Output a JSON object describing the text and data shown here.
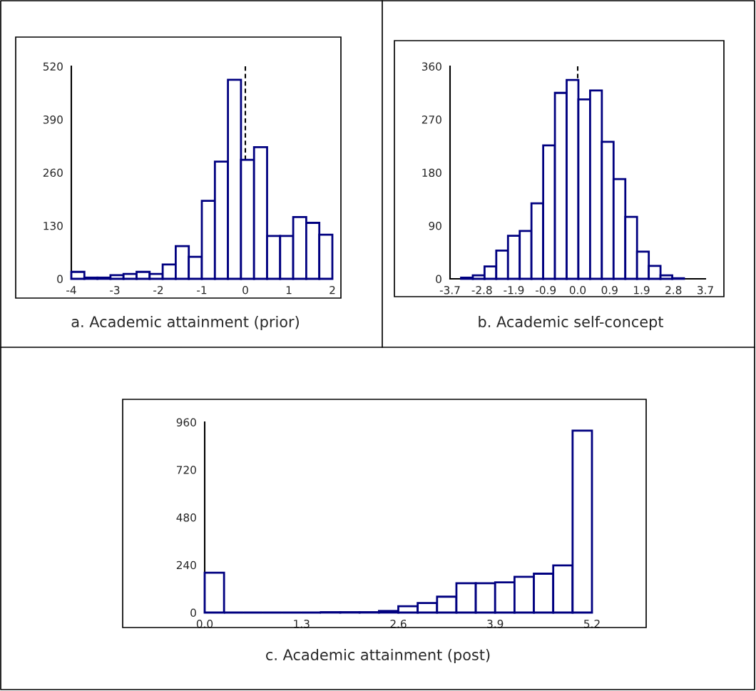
{
  "chart_data": [
    {
      "type": "histogram",
      "title": "a. Academic attainment (prior)",
      "color": "#000080",
      "bins": [
        -4,
        -3.7,
        -3.4,
        -3.1,
        -2.8,
        -2.5,
        -2.2,
        -1.9,
        -1.6,
        -1.3,
        -1,
        -0.7,
        -0.4,
        -0.1,
        0.2,
        0.5,
        0.8,
        1.1,
        1.4,
        1.7,
        2
      ],
      "values": [
        17,
        3,
        3,
        9,
        12,
        17,
        12,
        35,
        80,
        54,
        191,
        287,
        487,
        291,
        322,
        105,
        105,
        151,
        137,
        108
      ],
      "xlim": [
        -4,
        2
      ],
      "xticks": [
        -4,
        -3,
        -2,
        -1,
        0,
        1,
        2
      ],
      "ylim": [
        0,
        520
      ],
      "yticks": [
        0,
        130,
        260,
        390,
        520
      ],
      "ref_lines": [
        {
          "axis": "x",
          "value": 0,
          "color": "#000000",
          "line_style": "dashed"
        }
      ]
    },
    {
      "type": "histogram",
      "title": "b. Academic self-concept",
      "color": "#000080",
      "bins": [
        -3.38,
        -3.04,
        -2.7,
        -2.36,
        -2.02,
        -1.68,
        -1.34,
        -1,
        -0.66,
        -0.32,
        0.02,
        0.36,
        0.7,
        1.04,
        1.38,
        1.72,
        2.06,
        2.4,
        2.74,
        3.08
      ],
      "values": [
        2,
        6,
        21,
        48,
        73,
        81,
        128,
        226,
        315,
        337,
        304,
        319,
        232,
        169,
        105,
        46,
        22,
        6,
        1
      ],
      "xlim": [
        -3.7,
        3.7
      ],
      "xticks": [
        {
          "value": -3.7,
          "label": "-3.7"
        },
        {
          "value": -2.775,
          "label": "-2.8"
        },
        {
          "value": -1.85,
          "label": "-1.9"
        },
        {
          "value": -0.925,
          "label": "-0.9"
        },
        {
          "value": 0,
          "label": "0.0"
        },
        {
          "value": 0.925,
          "label": "0.9"
        },
        {
          "value": 1.85,
          "label": "1.9"
        },
        {
          "value": 2.775,
          "label": "2.8"
        },
        {
          "value": 3.7,
          "label": "3.7"
        }
      ],
      "ylim": [
        0,
        360
      ],
      "yticks": [
        0,
        90,
        180,
        270,
        360
      ],
      "ref_lines": [
        {
          "axis": "x",
          "value": 0,
          "color": "#000000",
          "line_style": "dashed"
        }
      ]
    },
    {
      "type": "histogram",
      "title": "c. Academic attainment (post)",
      "color": "#000080",
      "bins": [
        0,
        0.26,
        0.52,
        0.78,
        1.04,
        1.3,
        1.56,
        1.82,
        2.08,
        2.34,
        2.6,
        2.86,
        3.12,
        3.38,
        3.64,
        3.9,
        4.16,
        4.42,
        4.68,
        4.94,
        5.2
      ],
      "values": [
        201,
        0,
        0,
        0,
        0,
        0,
        2,
        2,
        2,
        8,
        32,
        48,
        80,
        148,
        148,
        152,
        180,
        196,
        238,
        917
      ],
      "xlim": [
        0,
        5.2
      ],
      "xticks": [
        {
          "value": 0,
          "label": "0.0"
        },
        1.3,
        2.6,
        3.9,
        5.2
      ],
      "ylim": [
        0,
        960
      ],
      "yticks": [
        0,
        240,
        480,
        720,
        960
      ]
    }
  ]
}
